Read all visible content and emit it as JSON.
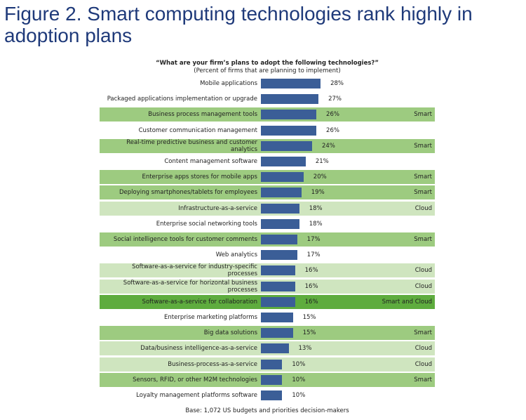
{
  "chart_data": {
    "type": "bar",
    "orientation": "horizontal",
    "title": "Figure 2. Smart computing technologies rank highly in adoption plans",
    "question": "“What are your firm’s plans to adopt the following technologies?”",
    "subtitle": "(Percent of firms that are planning to implement)",
    "note": "Base: 1,072 US budgets and priorities decision-makers",
    "categories": [
      "Mobile applications",
      "Packaged applications implementation or upgrade",
      "Business process management tools",
      "Customer communication management",
      "Real-time predictive business and customer analytics",
      "Content management software",
      "Enterprise apps stores for mobile apps",
      "Deploying smartphones/tablets for employees",
      "Infrastructure-as-a-service",
      "Enterprise social networking tools",
      "Social intelligence tools for customer comments",
      "Web analytics",
      "Software-as-a-service for industry-specific processes",
      "Software-as-a-service for horizontal business processes",
      "Software-as-a-service for collaboration",
      "Enterprise marketing platforms",
      "Big data solutions",
      "Data/business intelligence-as-a-service",
      "Business-process-as-a-service",
      "Sensors, RFID, or other M2M technologies",
      "Loyalty management platforms software"
    ],
    "values": [
      28,
      27,
      26,
      26,
      24,
      21,
      20,
      19,
      18,
      18,
      17,
      17,
      16,
      16,
      16,
      15,
      15,
      13,
      10,
      10,
      10
    ],
    "value_labels": [
      "28%",
      "27%",
      "26%",
      "26%",
      "24%",
      "21%",
      "20%",
      "19%",
      "18%",
      "18%",
      "17%",
      "17%",
      "16%",
      "16%",
      "16%",
      "15%",
      "15%",
      "13%",
      "10%",
      "10%",
      "10%"
    ],
    "row_tags": [
      null,
      null,
      "Smart",
      null,
      "Smart",
      null,
      "Smart",
      "Smart",
      "Cloud",
      null,
      "Smart",
      null,
      "Cloud",
      "Cloud",
      "Smart and Cloud",
      null,
      "Smart",
      "Cloud",
      "Cloud",
      "Smart",
      null
    ],
    "row_colors": [
      null,
      null,
      "#9dcb80",
      null,
      "#9dcb80",
      null,
      "#9dcb80",
      "#9dcb80",
      "#cfe5bf",
      null,
      "#9dcb80",
      null,
      "#cfe5bf",
      "#cfe5bf",
      "#5eac3e",
      null,
      "#9dcb80",
      "#cfe5bf",
      "#cfe5bf",
      "#9dcb80",
      null
    ],
    "color": "#3b5e97",
    "xlim": [
      0,
      50
    ]
  }
}
